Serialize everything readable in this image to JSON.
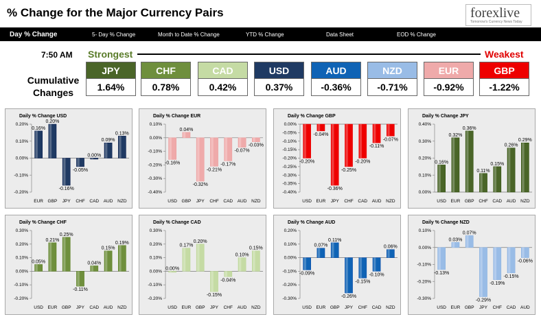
{
  "header": {
    "title": "% Change for the Major Currency Pairs",
    "logo_text": "forexlive",
    "logo_sub": "Tomorrow's Currency News Today"
  },
  "nav": [
    "Day % Change",
    "5- Day % Change",
    "Month to Date % Change",
    "YTD % Change",
    "Data Sheet",
    "EOD % Change"
  ],
  "summary": {
    "time": "7:50 AM",
    "strongest": "Strongest",
    "weakest": "Weakest",
    "label": "Cumulative Changes"
  },
  "tiles": [
    {
      "name": "JPY",
      "value": "1.64%",
      "color": "#4a6528"
    },
    {
      "name": "CHF",
      "value": "0.78%",
      "color": "#6f8f3d"
    },
    {
      "name": "CAD",
      "value": "0.42%",
      "color": "#c5dba4"
    },
    {
      "name": "USD",
      "value": "0.37%",
      "color": "#1f3a63"
    },
    {
      "name": "AUD",
      "value": "-0.36%",
      "color": "#0f63b5"
    },
    {
      "name": "NZD",
      "value": "-0.71%",
      "color": "#99bce6"
    },
    {
      "name": "EUR",
      "value": "-0.92%",
      "color": "#efaaaa"
    },
    {
      "name": "GBP",
      "value": "-1.22%",
      "color": "#ee0000"
    }
  ],
  "chart_data": [
    {
      "type": "bar",
      "title": "Daily % Change USD",
      "categories": [
        "EUR",
        "GBP",
        "JPY",
        "CHF",
        "CAD",
        "AUD",
        "NZD"
      ],
      "values": [
        0.16,
        0.2,
        -0.16,
        -0.05,
        0.0,
        0.09,
        0.13
      ],
      "labels": [
        "0.16%",
        "0.20%",
        "-0.16%",
        "-0.05%",
        "0.00%",
        "0.09%",
        "0.13%"
      ],
      "ylim": [
        -0.2,
        0.2
      ],
      "ticks": [
        0.2,
        0.1,
        0.0,
        -0.1,
        -0.2
      ],
      "tick_labels": [
        "0.20%",
        "0.10%",
        "0.00%",
        "-0.10%",
        "-0.20%"
      ],
      "color": "#1f3a63"
    },
    {
      "type": "bar",
      "title": "Daily % Change EUR",
      "categories": [
        "USD",
        "GBP",
        "JPY",
        "CHF",
        "CAD",
        "AUD",
        "NZD"
      ],
      "values": [
        -0.16,
        0.04,
        -0.32,
        -0.21,
        -0.17,
        -0.07,
        -0.03
      ],
      "labels": [
        "-0.16%",
        "0.04%",
        "-0.32%",
        "-0.21%",
        "-0.17%",
        "-0.07%",
        "-0.03%"
      ],
      "ylim": [
        -0.4,
        0.1
      ],
      "ticks": [
        0.1,
        0.0,
        -0.1,
        -0.2,
        -0.3,
        -0.4
      ],
      "tick_labels": [
        "0.10%",
        "0.00%",
        "-0.10%",
        "-0.20%",
        "-0.30%",
        "-0.40%"
      ],
      "color": "#efaaaa"
    },
    {
      "type": "bar",
      "title": "Daily % Change GBP",
      "categories": [
        "USD",
        "EUR",
        "JPY",
        "CHF",
        "CAD",
        "AUD",
        "NZD"
      ],
      "values": [
        -0.2,
        -0.04,
        -0.36,
        -0.25,
        -0.2,
        -0.11,
        -0.07
      ],
      "labels": [
        "-0.20%",
        "-0.04%",
        "-0.36%",
        "-0.25%",
        "-0.20%",
        "-0.11%",
        "-0.07%"
      ],
      "ylim": [
        -0.4,
        0.0
      ],
      "ticks": [
        0.0,
        -0.05,
        -0.1,
        -0.15,
        -0.2,
        -0.25,
        -0.3,
        -0.35,
        -0.4
      ],
      "tick_labels": [
        "0.00%",
        "-0.05%",
        "-0.10%",
        "-0.15%",
        "-0.20%",
        "-0.25%",
        "-0.30%",
        "-0.35%",
        "-0.40%"
      ],
      "color": "#ee0000"
    },
    {
      "type": "bar",
      "title": "Daily % Change JPY",
      "categories": [
        "USD",
        "EUR",
        "GBP",
        "CHF",
        "CAD",
        "AUD",
        "NZD"
      ],
      "values": [
        0.16,
        0.32,
        0.36,
        0.11,
        0.15,
        0.26,
        0.29
      ],
      "labels": [
        "0.16%",
        "0.32%",
        "0.36%",
        "0.11%",
        "0.15%",
        "0.26%",
        "0.29%"
      ],
      "ylim": [
        0.0,
        0.4
      ],
      "ticks": [
        0.4,
        0.3,
        0.2,
        0.1,
        0.0
      ],
      "tick_labels": [
        "0.40%",
        "0.30%",
        "0.20%",
        "0.10%",
        "0.00%"
      ],
      "color": "#4a6528"
    },
    {
      "type": "bar",
      "title": "Daily % Change CHF",
      "categories": [
        "USD",
        "EUR",
        "GBP",
        "JPY",
        "CAD",
        "AUD",
        "NZD"
      ],
      "values": [
        0.05,
        0.21,
        0.25,
        -0.11,
        0.04,
        0.15,
        0.19
      ],
      "labels": [
        "0.05%",
        "0.21%",
        "0.25%",
        "-0.11%",
        "0.04%",
        "0.15%",
        "0.19%"
      ],
      "ylim": [
        -0.2,
        0.3
      ],
      "ticks": [
        0.3,
        0.2,
        0.1,
        0.0,
        -0.1,
        -0.2
      ],
      "tick_labels": [
        "0.30%",
        "0.20%",
        "0.10%",
        "0.00%",
        "-0.10%",
        "-0.20%"
      ],
      "color": "#6f8f3d"
    },
    {
      "type": "bar",
      "title": "Daily % Change CAD",
      "categories": [
        "USD",
        "EUR",
        "GBP",
        "JPY",
        "CHF",
        "AUD",
        "NZD"
      ],
      "values": [
        0.0,
        0.17,
        0.2,
        -0.15,
        -0.04,
        0.1,
        0.15
      ],
      "labels": [
        "0.00%",
        "0.17%",
        "0.20%",
        "-0.15%",
        "-0.04%",
        "0.10%",
        "0.15%"
      ],
      "ylim": [
        -0.2,
        0.3
      ],
      "ticks": [
        0.3,
        0.2,
        0.1,
        0.0,
        -0.1,
        -0.2
      ],
      "tick_labels": [
        "0.30%",
        "0.20%",
        "0.10%",
        "0.00%",
        "-0.10%",
        "-0.20%"
      ],
      "color": "#c5dba4"
    },
    {
      "type": "bar",
      "title": "Daily % Change AUD",
      "categories": [
        "USD",
        "EUR",
        "GBP",
        "JPY",
        "CHF",
        "CAD",
        "NZD"
      ],
      "values": [
        -0.09,
        0.07,
        0.11,
        -0.26,
        -0.15,
        -0.1,
        0.06
      ],
      "labels": [
        "-0.09%",
        "0.07%",
        "0.11%",
        "-0.26%",
        "-0.15%",
        "-0.10%",
        "0.06%"
      ],
      "ylim": [
        -0.3,
        0.2
      ],
      "ticks": [
        0.2,
        0.1,
        0.0,
        -0.1,
        -0.2,
        -0.3
      ],
      "tick_labels": [
        "0.20%",
        "0.10%",
        "0.00%",
        "-0.10%",
        "-0.20%",
        "-0.30%"
      ],
      "color": "#0f63b5"
    },
    {
      "type": "bar",
      "title": "Daily % Change NZD",
      "categories": [
        "USD",
        "EUR",
        "GBP",
        "JPY",
        "CHF",
        "CAD",
        "AUD"
      ],
      "values": [
        -0.13,
        0.03,
        0.07,
        -0.29,
        -0.19,
        -0.15,
        -0.06
      ],
      "labels": [
        "-0.13%",
        "0.03%",
        "0.07%",
        "-0.29%",
        "-0.19%",
        "-0.15%",
        "-0.06%"
      ],
      "ylim": [
        -0.3,
        0.1
      ],
      "ticks": [
        0.1,
        0.0,
        -0.1,
        -0.2,
        -0.3
      ],
      "tick_labels": [
        "0.10%",
        "0.00%",
        "-0.10%",
        "-0.20%",
        "-0.30%"
      ],
      "color": "#99bce6"
    }
  ]
}
